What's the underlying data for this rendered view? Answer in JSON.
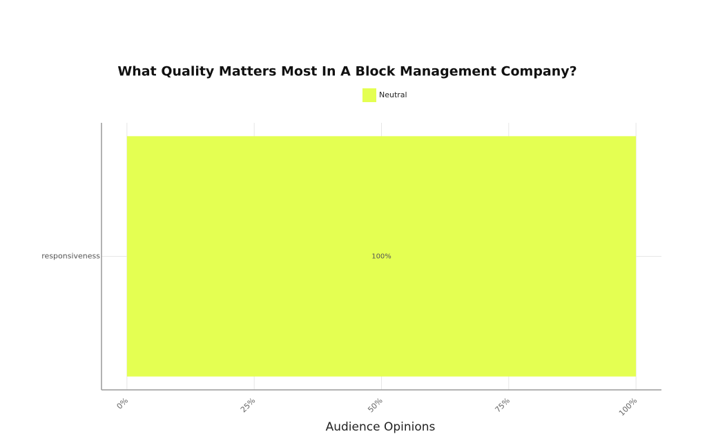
{
  "chart_data": {
    "type": "hbar",
    "title": "What Quality Matters Most In A Block Management Company?",
    "x_label": "Audience Opinions",
    "categories": [
      "responsiveness"
    ],
    "series": [
      {
        "name": "Neutral",
        "color": "#e4ff52",
        "values": [
          100
        ],
        "value_labels": [
          "100%"
        ]
      }
    ],
    "xlim": [
      -5,
      105
    ],
    "xticks": [
      {
        "value": 0,
        "label": "0%"
      },
      {
        "value": 25,
        "label": "25%"
      },
      {
        "value": 50,
        "label": "50%"
      },
      {
        "value": 75,
        "label": "75%"
      },
      {
        "value": 100,
        "label": "100%"
      }
    ],
    "grid": true,
    "legend": "top"
  }
}
